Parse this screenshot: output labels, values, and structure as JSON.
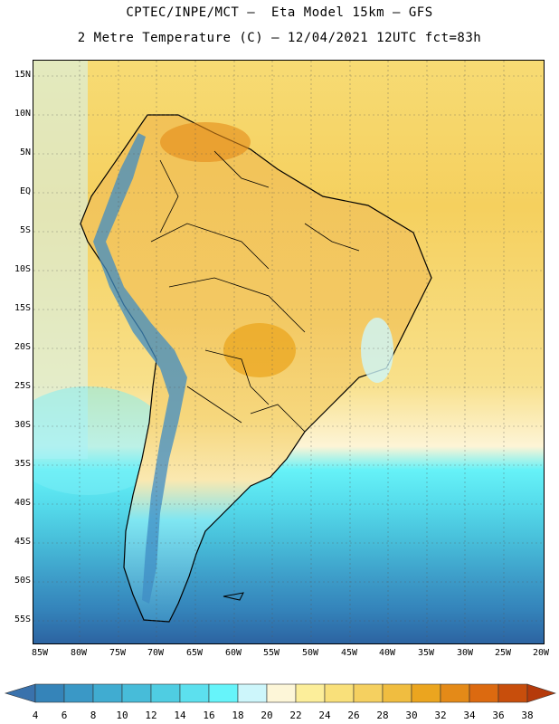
{
  "header": {
    "line1": "CPTEC/INPE/MCT –  Eta Model 15km – GFS",
    "line2": "2 Metre Temperature (C) – 12/04/2021 12UTC fct=83h"
  },
  "map": {
    "region": "South America",
    "lat_labels": [
      "15N",
      "10N",
      "5N",
      "EQ",
      "5S",
      "10S",
      "15S",
      "20S",
      "25S",
      "30S",
      "35S",
      "40S",
      "45S",
      "50S",
      "55S"
    ],
    "lon_labels": [
      "85W",
      "80W",
      "75W",
      "70W",
      "65W",
      "60W",
      "55W",
      "50W",
      "45W",
      "40W",
      "35W",
      "30W",
      "25W",
      "20W"
    ]
  },
  "colorbar": {
    "labels": [
      "4",
      "6",
      "8",
      "10",
      "12",
      "14",
      "16",
      "18",
      "20",
      "22",
      "24",
      "26",
      "28",
      "30",
      "32",
      "34",
      "36",
      "38"
    ],
    "colors": [
      "#2f6fa6",
      "#3584b9",
      "#3a98c6",
      "#40acd1",
      "#47bcd9",
      "#4fcde2",
      "#5ce0ee",
      "#66f4fa",
      "#cdf6fb",
      "#fdf6d8",
      "#fcee9a",
      "#f9e07a",
      "#f5d060",
      "#f0bd40",
      "#eba51f",
      "#e48a18",
      "#dc6a10",
      "#c84e0c",
      "#b63a08"
    ],
    "low_arrow_color": "#3a72ac",
    "high_arrow_color": "#b53a0b"
  }
}
